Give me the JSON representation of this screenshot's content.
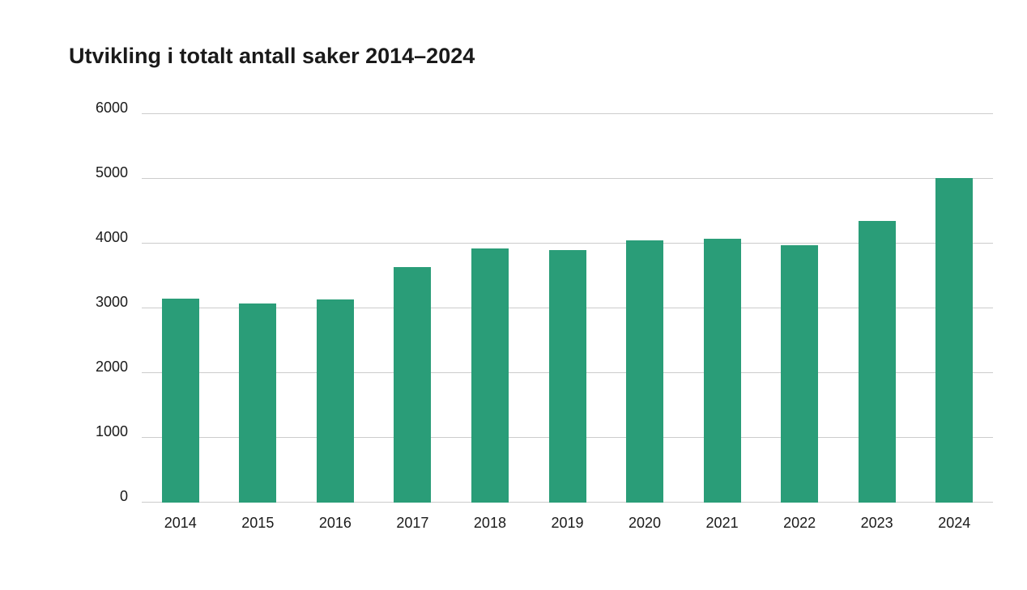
{
  "chart_data": {
    "type": "bar",
    "title": "Utvikling i totalt antall saker 2014–2024",
    "categories": [
      "2014",
      "2015",
      "2016",
      "2017",
      "2018",
      "2019",
      "2020",
      "2021",
      "2022",
      "2023",
      "2024"
    ],
    "values": [
      3140,
      3070,
      3130,
      3630,
      3910,
      3890,
      4040,
      4060,
      3970,
      4340,
      5000
    ],
    "xlabel": "",
    "ylabel": "",
    "ylim": [
      0,
      6000
    ],
    "yticks": [
      0,
      1000,
      2000,
      3000,
      4000,
      5000,
      6000
    ],
    "grid": true,
    "legend": false,
    "bar_color": "#2a9d78",
    "gridline_color": "#cccccc",
    "text_color": "#1a1a1a",
    "background_color": "#ffffff"
  }
}
